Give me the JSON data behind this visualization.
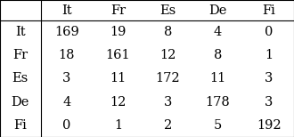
{
  "col_headers": [
    "It",
    "Fr",
    "Es",
    "De",
    "Fi"
  ],
  "row_headers": [
    "It",
    "Fr",
    "Es",
    "De",
    "Fi"
  ],
  "matrix": [
    [
      169,
      19,
      8,
      4,
      0
    ],
    [
      18,
      161,
      12,
      8,
      1
    ],
    [
      3,
      11,
      172,
      11,
      3
    ],
    [
      4,
      12,
      3,
      178,
      3
    ],
    [
      0,
      1,
      2,
      5,
      192
    ]
  ],
  "background_color": "#ffffff",
  "text_color": "#000000",
  "border_color": "#000000",
  "font_size": 10.5,
  "figsize": [
    3.3,
    1.54
  ],
  "dpi": 100
}
